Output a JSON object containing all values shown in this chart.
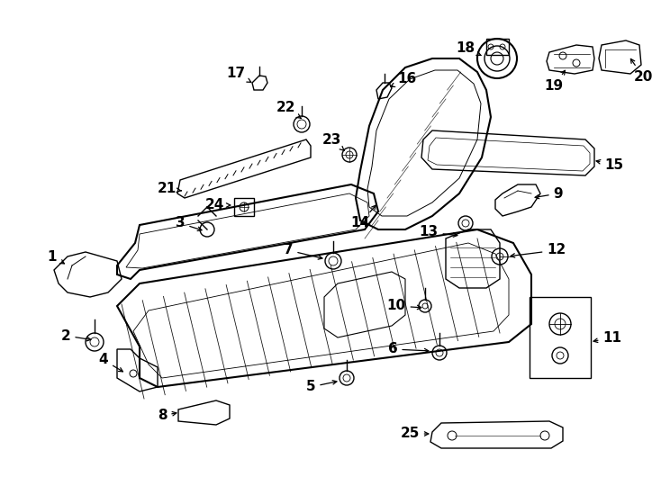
{
  "background_color": "#ffffff",
  "line_color": "#000000",
  "fig_width": 7.34,
  "fig_height": 5.4,
  "dpi": 100
}
